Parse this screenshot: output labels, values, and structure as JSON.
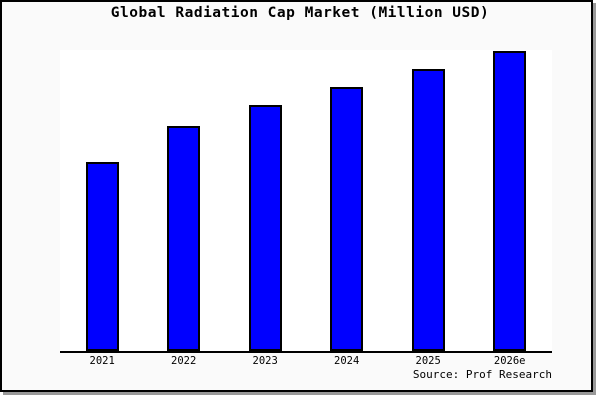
{
  "window": {
    "background_color": "#fafafa",
    "plot_background_color": "#ffffff",
    "border_color": "#000000",
    "shadow_color": "#999999"
  },
  "chart_data": {
    "type": "bar",
    "title": "Global Radiation Cap Market (Million USD)",
    "categories": [
      "2021",
      "2022",
      "2023",
      "2024",
      "2025",
      "2026e"
    ],
    "values": [
      63,
      75,
      82,
      88,
      94,
      100
    ],
    "value_basis": "relative bar heights, tallest bar (2026e) = 100; y-axis has no labels, ticks or gridlines",
    "ylim": [
      0,
      100
    ],
    "bar_color": "#0000ff",
    "bar_border_color": "#000000",
    "grid": false,
    "legend": false,
    "xlabel": "",
    "ylabel": "",
    "source_note": "Source: Prof Research"
  }
}
